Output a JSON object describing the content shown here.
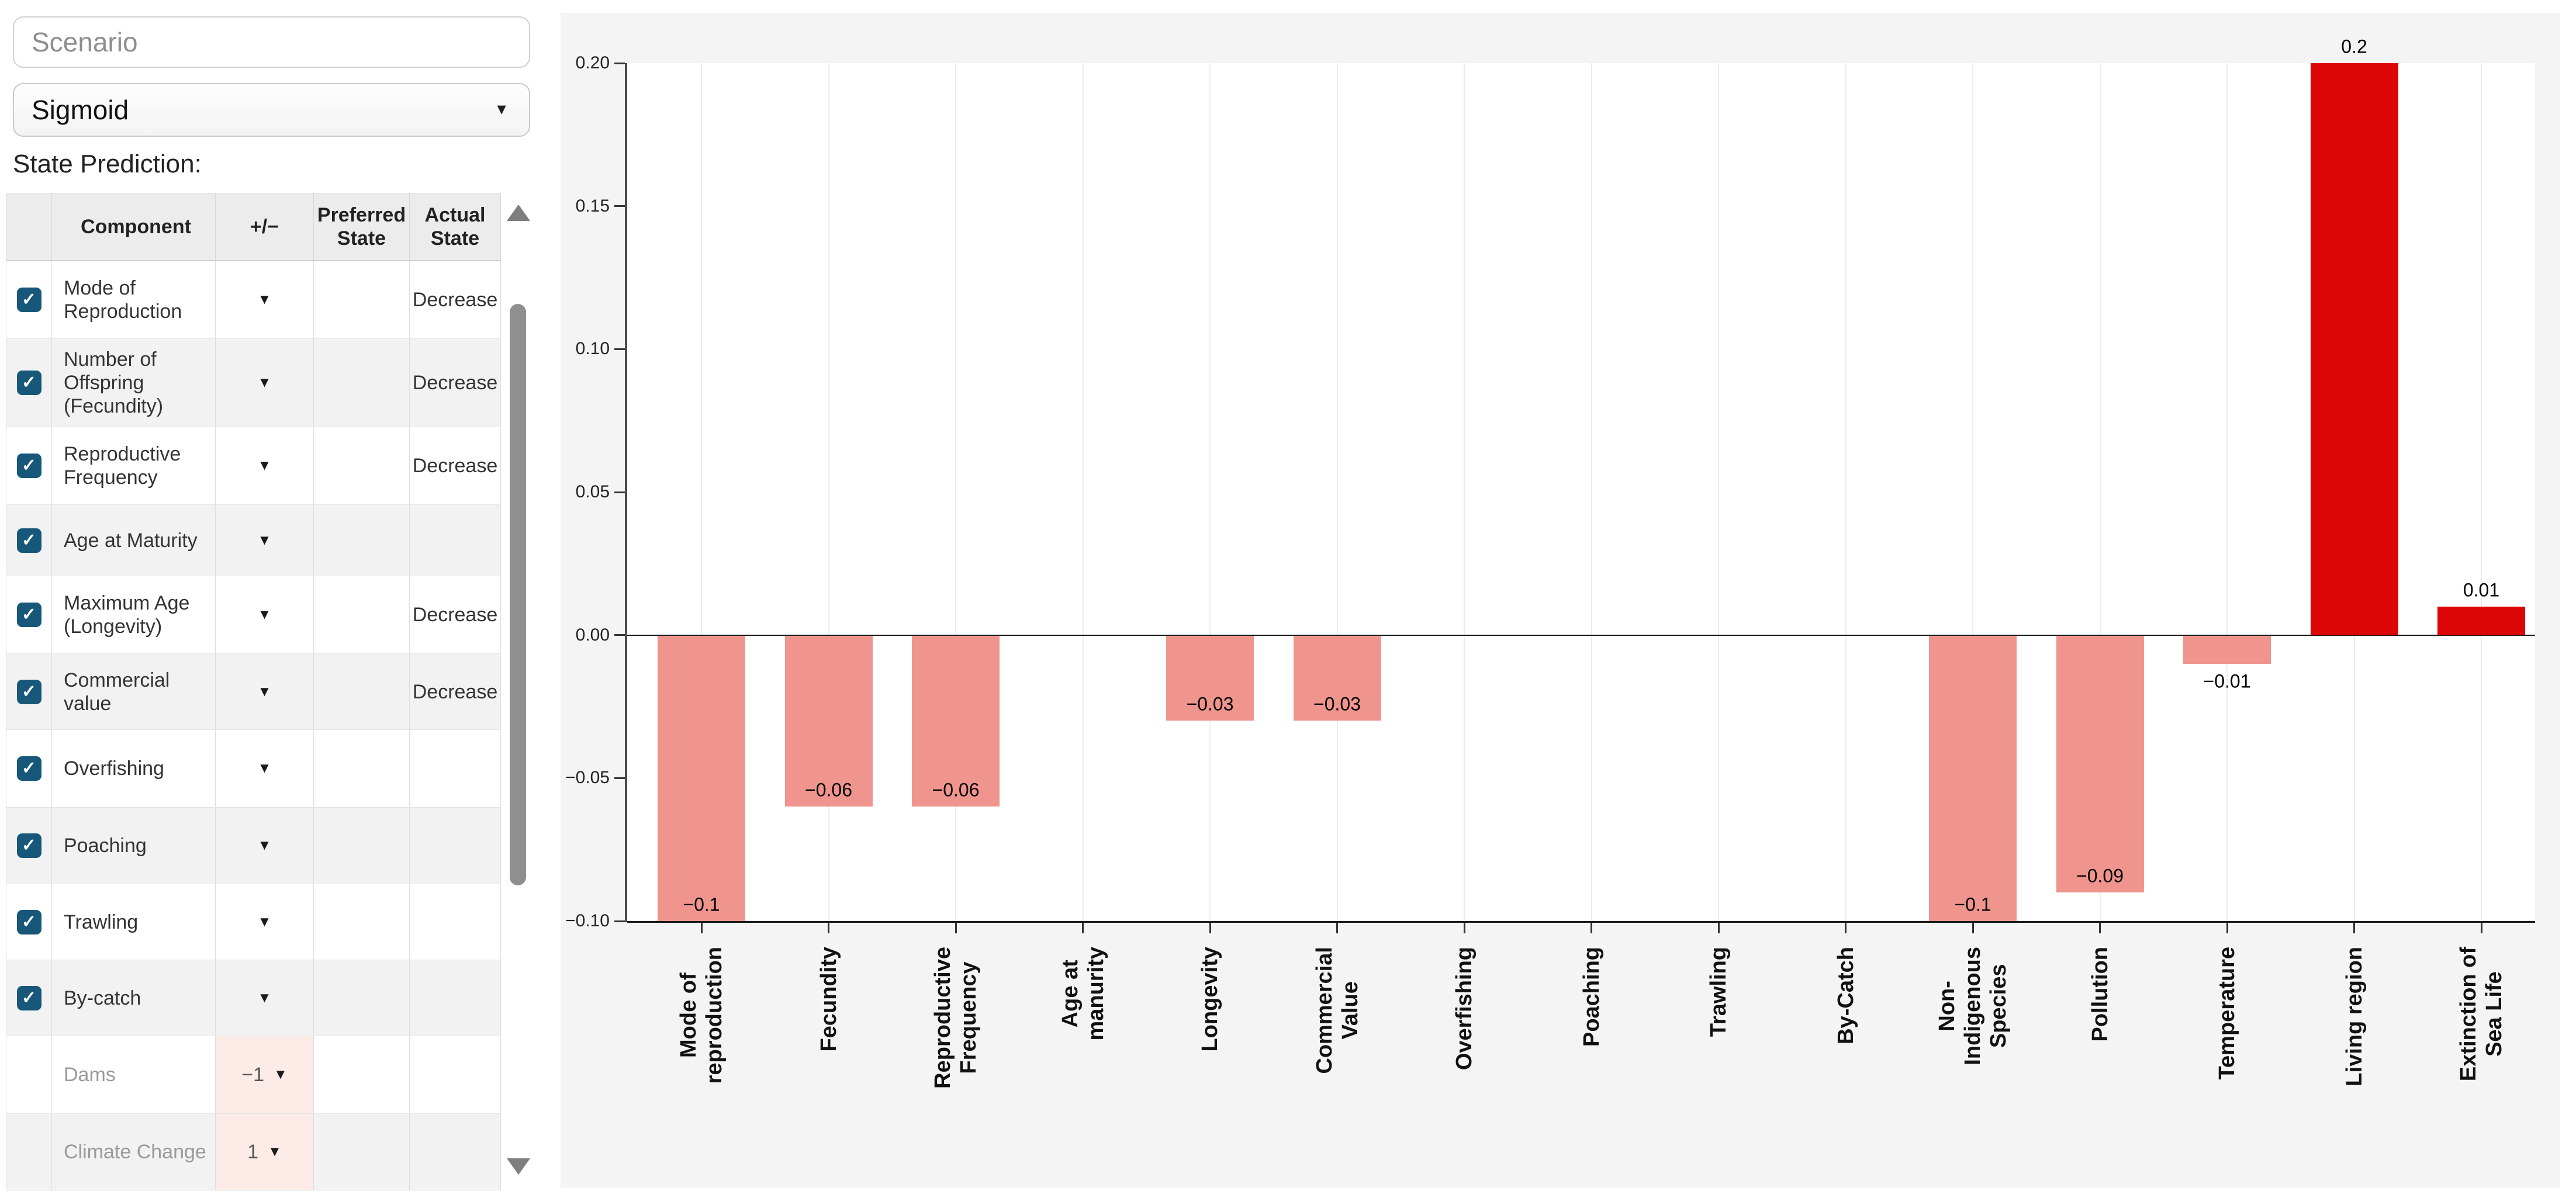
{
  "scenario_input": {
    "placeholder": "Scenario"
  },
  "function_select": {
    "value": "Sigmoid"
  },
  "state_prediction_label": "State Prediction:",
  "icons": {
    "dropdown_caret": "▼",
    "checkmark": "✓",
    "scroll_up": "▲",
    "scroll_down": "▼"
  },
  "colors": {
    "positive_bar": "#dd0606",
    "negative_bar": "#f0958d",
    "checkbox": "#17587a",
    "disabled_modifier_bg": "#fcebe7",
    "chart_background": "#f4f4f4"
  },
  "table": {
    "headers": {
      "component": "Component",
      "plusminus": "+/−",
      "preferred": "Preferred State",
      "actual": "Actual State"
    },
    "rows": [
      {
        "component": "Mode of Reproduction",
        "checked": true,
        "enabled": true,
        "modifier": "",
        "preferred_state": "",
        "actual_state": "Decrease"
      },
      {
        "component": "Number of Offspring (Fecundity)",
        "checked": true,
        "enabled": true,
        "modifier": "",
        "preferred_state": "",
        "actual_state": "Decrease"
      },
      {
        "component": "Reproductive Frequency",
        "checked": true,
        "enabled": true,
        "modifier": "",
        "preferred_state": "",
        "actual_state": "Decrease"
      },
      {
        "component": "Age at Maturity",
        "checked": true,
        "enabled": true,
        "modifier": "",
        "preferred_state": "",
        "actual_state": ""
      },
      {
        "component": "Maximum Age (Longevity)",
        "checked": true,
        "enabled": true,
        "modifier": "",
        "preferred_state": "",
        "actual_state": "Decrease"
      },
      {
        "component": "Commercial value",
        "checked": true,
        "enabled": true,
        "modifier": "",
        "preferred_state": "",
        "actual_state": "Decrease"
      },
      {
        "component": "Overfishing",
        "checked": true,
        "enabled": true,
        "modifier": "",
        "preferred_state": "",
        "actual_state": ""
      },
      {
        "component": "Poaching",
        "checked": true,
        "enabled": true,
        "modifier": "",
        "preferred_state": "",
        "actual_state": ""
      },
      {
        "component": "Trawling",
        "checked": true,
        "enabled": true,
        "modifier": "",
        "preferred_state": "",
        "actual_state": ""
      },
      {
        "component": "By-catch",
        "checked": true,
        "enabled": true,
        "modifier": "",
        "preferred_state": "",
        "actual_state": ""
      },
      {
        "component": "Dams",
        "checked": false,
        "enabled": false,
        "modifier": "−1",
        "preferred_state": "",
        "actual_state": ""
      },
      {
        "component": "Climate Change",
        "checked": false,
        "enabled": false,
        "modifier": "1",
        "preferred_state": "",
        "actual_state": ""
      }
    ]
  },
  "chart_data": {
    "type": "bar",
    "categories": [
      "Mode of\nreproduction",
      "Fecundity",
      "Reproductive\nFrequency",
      "Age at\nmanurity",
      "Longevity",
      "Commercial\nValue",
      "Overfishing",
      "Poaching",
      "Trawling",
      "By-Catch",
      "Non-\nIndigenous\nSpecies",
      "Pollution",
      "Temperature",
      "Living region",
      "Extinction of\nSea Life"
    ],
    "values": [
      -0.1,
      -0.06,
      -0.06,
      0,
      -0.03,
      -0.03,
      0,
      0,
      0,
      0,
      -0.1,
      -0.09,
      -0.01,
      0.2,
      0.01
    ],
    "value_labels": [
      "−0.1",
      "−0.06",
      "−0.06",
      "",
      "−0.03",
      "−0.03",
      "",
      "",
      "",
      "",
      "−0.1",
      "−0.09",
      "−0.01",
      "0.2",
      "0.01"
    ],
    "title": "",
    "xlabel": "",
    "ylabel": "",
    "ylim": [
      -0.1,
      0.2
    ],
    "yticks": [
      0.2,
      0.15,
      0.1,
      0.05,
      0.0,
      -0.05,
      -0.1
    ],
    "ytick_labels": [
      "0.20",
      "0.15",
      "0.10",
      "0.05",
      "0.00",
      "−0.05",
      "−0.10"
    ],
    "grid": "vertical-category-gridlines",
    "legend": "none"
  }
}
